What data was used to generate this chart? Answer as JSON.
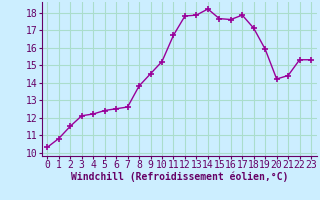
{
  "x": [
    0,
    1,
    2,
    3,
    4,
    5,
    6,
    7,
    8,
    9,
    10,
    11,
    12,
    13,
    14,
    15,
    16,
    17,
    18,
    19,
    20,
    21,
    22,
    23
  ],
  "y": [
    10.3,
    10.8,
    11.5,
    12.1,
    12.2,
    12.4,
    12.5,
    12.6,
    13.8,
    14.5,
    15.2,
    16.7,
    17.8,
    17.85,
    18.2,
    17.65,
    17.6,
    17.85,
    17.1,
    15.9,
    14.2,
    14.4,
    15.3,
    15.3
  ],
  "line_color": "#990099",
  "marker": "+",
  "marker_size": 4,
  "bg_color": "#cceeff",
  "grid_color": "#aaddcc",
  "xlabel": "Windchill (Refroidissement éolien,°C)",
  "xlabel_fontsize": 7,
  "tick_fontsize": 7,
  "ylim": [
    9.8,
    18.6
  ],
  "yticks": [
    10,
    11,
    12,
    13,
    14,
    15,
    16,
    17,
    18
  ],
  "xticks": [
    0,
    1,
    2,
    3,
    4,
    5,
    6,
    7,
    8,
    9,
    10,
    11,
    12,
    13,
    14,
    15,
    16,
    17,
    18,
    19,
    20,
    21,
    22,
    23
  ],
  "label_color": "#660066"
}
